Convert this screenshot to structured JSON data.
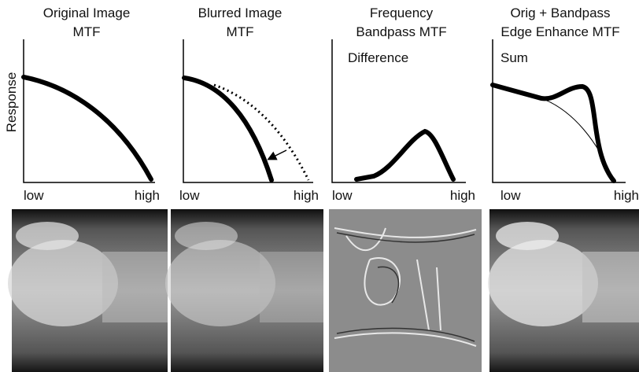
{
  "y_axis_label": "Response",
  "panels": [
    {
      "title": [
        "Original Image",
        "MTF"
      ],
      "x_low": "low",
      "x_high": "high"
    },
    {
      "title": [
        "Blurred Image",
        "MTF"
      ],
      "x_low": "low",
      "x_high": "high"
    },
    {
      "title": [
        "Frequency",
        "Bandpass MTF"
      ],
      "annotation": "Difference",
      "x_low": "low",
      "x_high": "high"
    },
    {
      "title": [
        "Orig + Bandpass",
        "Edge Enhance MTF"
      ],
      "annotation": "Sum",
      "x_low": "low",
      "x_high": "high"
    }
  ]
}
